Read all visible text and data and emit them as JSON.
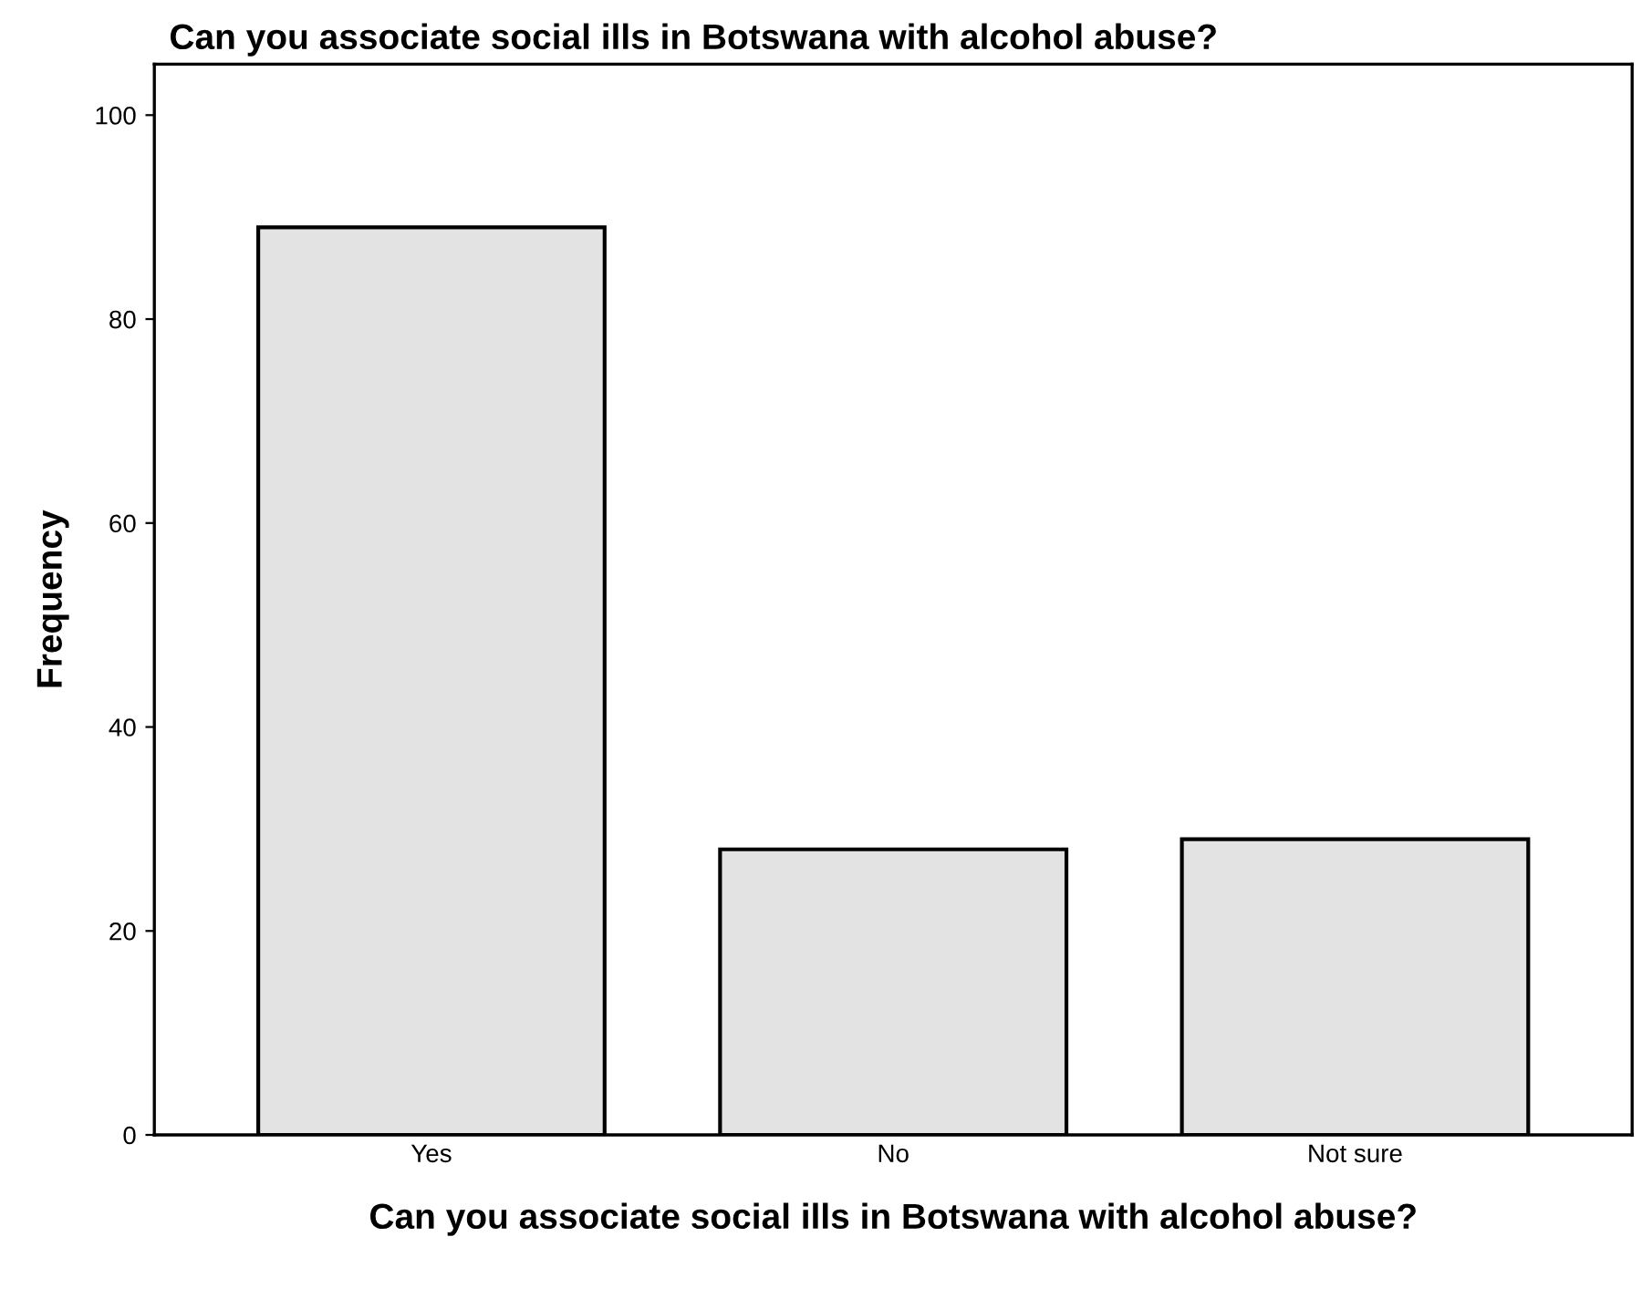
{
  "chart_data": {
    "type": "bar",
    "title": "Can you associate social ills in Botswana with alcohol abuse?",
    "xlabel": "Can you associate social ills in Botswana with alcohol abuse?",
    "ylabel": "Frequency",
    "categories": [
      "Yes",
      "No",
      "Not sure"
    ],
    "values": [
      89,
      28,
      29
    ],
    "color": "#e3e3e3",
    "ylim": [
      0,
      105
    ],
    "yticks": [
      0,
      20,
      40,
      60,
      80,
      100
    ],
    "grid": false
  }
}
